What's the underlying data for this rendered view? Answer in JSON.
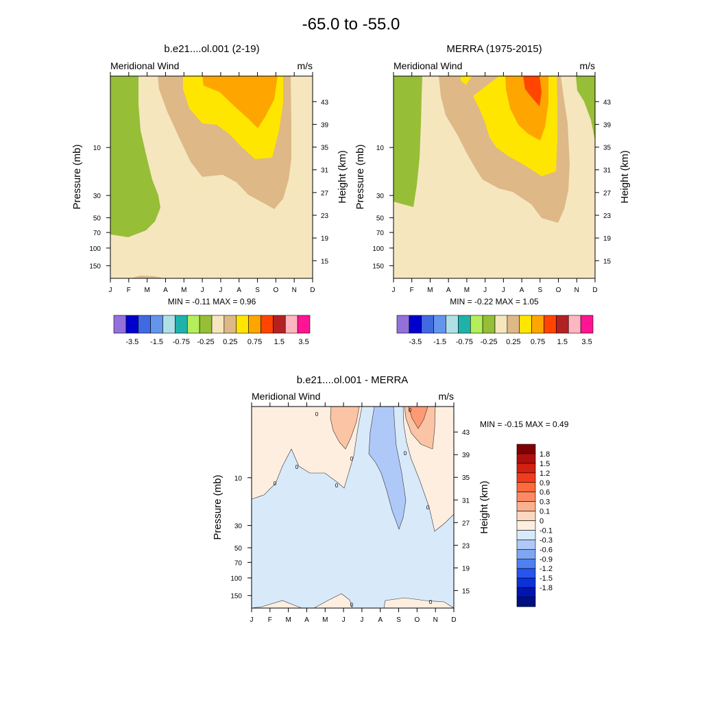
{
  "figure": {
    "title": "-65.0 to -55.0"
  },
  "chart_data": [
    {
      "type": "heatmap",
      "title": "b.e21....ol.001 (2-19)",
      "left_string": "Meridional Wind",
      "right_string": "m/s",
      "xlabel": "",
      "ylabel": "Pressure (mb)",
      "y2label": "Height (km)",
      "months": [
        "J",
        "F",
        "M",
        "A",
        "M",
        "J",
        "J",
        "A",
        "S",
        "O",
        "N",
        "D"
      ],
      "pressure_ticks": [
        "10",
        "30",
        "50",
        "70",
        "100",
        "150"
      ],
      "pressure_tick_values": [
        10,
        30,
        50,
        70,
        100,
        150
      ],
      "height_ticks": [
        "43",
        "39",
        "35",
        "31",
        "27",
        "23",
        "19",
        "15"
      ],
      "height_tick_values": [
        43,
        39,
        35,
        31,
        27,
        23,
        19,
        15
      ],
      "minmax": "MIN =  -0.11  MAX =   0.96",
      "min": -0.11,
      "max": 0.96,
      "colorbar_labels": [
        "-3.5",
        "-1.5",
        "-0.75",
        "-0.25",
        "0.25",
        "0.75",
        "1.5",
        "3.5"
      ],
      "colorbar_colors": [
        "#9370db",
        "#0000cd",
        "#4169e1",
        "#6495ed",
        "#b0e0e6",
        "#20b2aa",
        "#b4ee5a",
        "#96be37",
        "#f5e6be",
        "#deb887",
        "#ffe600",
        "#ffa500",
        "#ff4500",
        "#b22222",
        "#ffb6c1",
        "#ff1493"
      ]
    },
    {
      "type": "heatmap",
      "title": "MERRA (1975-2015)",
      "left_string": "Meridional Wind",
      "right_string": "m/s",
      "xlabel": "",
      "ylabel": "Pressure (mb)",
      "y2label": "Height (km)",
      "months": [
        "J",
        "F",
        "M",
        "A",
        "M",
        "J",
        "J",
        "A",
        "S",
        "O",
        "N",
        "D"
      ],
      "pressure_ticks": [
        "10",
        "30",
        "50",
        "70",
        "100",
        "150"
      ],
      "pressure_tick_values": [
        10,
        30,
        50,
        70,
        100,
        150
      ],
      "height_ticks": [
        "43",
        "39",
        "35",
        "31",
        "27",
        "23",
        "19",
        "15"
      ],
      "height_tick_values": [
        43,
        39,
        35,
        31,
        27,
        23,
        19,
        15
      ],
      "minmax": "MIN =  -0.22  MAX =   1.05",
      "min": -0.22,
      "max": 1.05,
      "colorbar_labels": [
        "-3.5",
        "-1.5",
        "-0.75",
        "-0.25",
        "0.25",
        "0.75",
        "1.5",
        "3.5"
      ],
      "colorbar_colors": [
        "#9370db",
        "#0000cd",
        "#4169e1",
        "#6495ed",
        "#b0e0e6",
        "#20b2aa",
        "#b4ee5a",
        "#96be37",
        "#f5e6be",
        "#deb887",
        "#ffe600",
        "#ffa500",
        "#ff4500",
        "#b22222",
        "#ffb6c1",
        "#ff1493"
      ]
    },
    {
      "type": "heatmap",
      "title": "b.e21....ol.001 - MERRA",
      "left_string": "Meridional Wind",
      "right_string": "m/s",
      "xlabel": "",
      "ylabel": "Pressure (mb)",
      "y2label": "Height (km)",
      "months": [
        "J",
        "F",
        "M",
        "A",
        "M",
        "J",
        "J",
        "A",
        "S",
        "O",
        "N",
        "D"
      ],
      "pressure_ticks": [
        "10",
        "30",
        "50",
        "70",
        "100",
        "150"
      ],
      "pressure_tick_values": [
        10,
        30,
        50,
        70,
        100,
        150
      ],
      "height_ticks": [
        "43",
        "39",
        "35",
        "31",
        "27",
        "23",
        "19",
        "15"
      ],
      "height_tick_values": [
        43,
        39,
        35,
        31,
        27,
        23,
        19,
        15
      ],
      "minmax": "MIN =  -0.15  MAX =   0.49",
      "min": -0.15,
      "max": 0.49,
      "contour_label": "0",
      "colorbar_labels": [
        "1.8",
        "1.5",
        "1.2",
        "0.9",
        "0.6",
        "0.3",
        "0.1",
        "0",
        "-0.1",
        "-0.3",
        "-0.6",
        "-0.9",
        "-1.2",
        "-1.5",
        "-1.8"
      ],
      "colorbar_colors": [
        "#7f0000",
        "#b0100c",
        "#d42010",
        "#f03c1e",
        "#ff6a3c",
        "#fd8a64",
        "#fbb08e",
        "#fdd8c0",
        "#fdeee0",
        "#d8eafa",
        "#aec8f8",
        "#7fa6f2",
        "#4f80f0",
        "#2456ee",
        "#0a32d8",
        "#0014b0"
      ]
    }
  ]
}
